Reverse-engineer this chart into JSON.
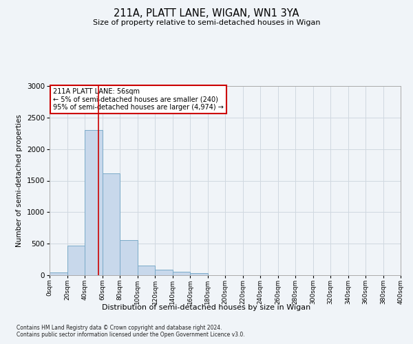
{
  "title": "211A, PLATT LANE, WIGAN, WN1 3YA",
  "subtitle": "Size of property relative to semi-detached houses in Wigan",
  "xlabel": "Distribution of semi-detached houses by size in Wigan",
  "ylabel": "Number of semi-detached properties",
  "footnote1": "Contains HM Land Registry data © Crown copyright and database right 2024.",
  "footnote2": "Contains public sector information licensed under the Open Government Licence v3.0.",
  "annotation_title": "211A PLATT LANE: 56sqm",
  "annotation_line1": "← 5% of semi-detached houses are smaller (240)",
  "annotation_line2": "95% of semi-detached houses are larger (4,974) →",
  "property_size": 56,
  "bin_edges": [
    0,
    20,
    40,
    60,
    80,
    100,
    120,
    140,
    160,
    180,
    200,
    220,
    240,
    260,
    280,
    300,
    320,
    340,
    360,
    380,
    400
  ],
  "bin_counts": [
    40,
    470,
    2300,
    1620,
    560,
    155,
    90,
    55,
    30,
    0,
    0,
    0,
    0,
    0,
    0,
    0,
    0,
    0,
    0,
    0
  ],
  "bar_facecolor": "#c8d8eb",
  "bar_edgecolor": "#7aaac8",
  "grid_color": "#d0d8e0",
  "vline_color": "#cc0000",
  "vline_x": 56,
  "ylim": [
    0,
    3000
  ],
  "yticks": [
    0,
    500,
    1000,
    1500,
    2000,
    2500,
    3000
  ],
  "background_color": "#f0f4f8",
  "annotation_box_edgecolor": "#cc0000",
  "annotation_box_facecolor": "#ffffff"
}
